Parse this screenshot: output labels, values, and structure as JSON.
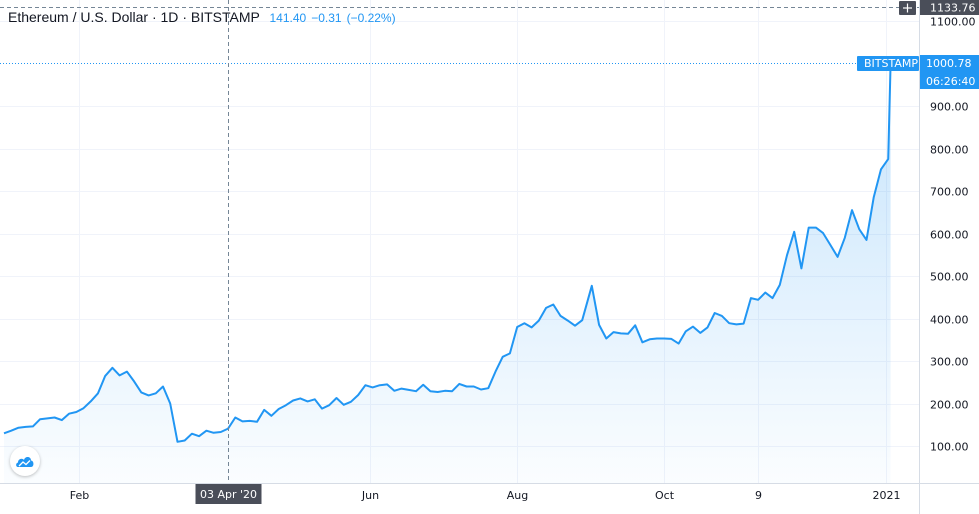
{
  "header": {
    "symbol": "Ethereum / U.S. Dollar",
    "interval": "1D",
    "exchange": "BITSTAMP",
    "last": "141.40",
    "change": "−0.31",
    "change_pct": "(−0.22%)"
  },
  "crosshair": {
    "price_label": "1133.76",
    "date_label": "03 Apr '20"
  },
  "last_price": {
    "exchange_label": "BITSTAMP",
    "value_label": "1000.78",
    "countdown_label": "06:26:40",
    "value": 1000.78
  },
  "colors": {
    "line": "#2196f3",
    "tag": "#2196f3",
    "crosshair_label_bg": "#4a4e59"
  },
  "chart_data": {
    "type": "area",
    "y_ticks": [
      "100.00",
      "200.00",
      "300.00",
      "400.00",
      "500.00",
      "600.00",
      "700.00",
      "800.00",
      "900.00",
      "1100.00"
    ],
    "ylim": [
      40,
      1140
    ],
    "x_ticks": [
      {
        "label": "Feb",
        "date": "2020-02-01"
      },
      {
        "label": "Jun",
        "date": "2020-06-01"
      },
      {
        "label": "Aug",
        "date": "2020-08-01"
      },
      {
        "label": "Oct",
        "date": "2020-10-01"
      },
      {
        "label": "9",
        "date": "2020-11-09"
      },
      {
        "label": "2021",
        "date": "2021-01-01"
      }
    ],
    "xlim": [
      "2020-01-01",
      "2021-01-04"
    ],
    "crosshair_date": "2020-04-03",
    "series": [
      {
        "points": [
          [
            "2020-01-01",
            130
          ],
          [
            "2020-01-04",
            136
          ],
          [
            "2020-01-07",
            143
          ],
          [
            "2020-01-10",
            145
          ],
          [
            "2020-01-13",
            146
          ],
          [
            "2020-01-16",
            163
          ],
          [
            "2020-01-19",
            165
          ],
          [
            "2020-01-22",
            167
          ],
          [
            "2020-01-25",
            161
          ],
          [
            "2020-01-28",
            176
          ],
          [
            "2020-01-31",
            180
          ],
          [
            "2020-02-03",
            189
          ],
          [
            "2020-02-06",
            205
          ],
          [
            "2020-02-09",
            224
          ],
          [
            "2020-02-12",
            265
          ],
          [
            "2020-02-15",
            284
          ],
          [
            "2020-02-18",
            266
          ],
          [
            "2020-02-21",
            275
          ],
          [
            "2020-02-24",
            252
          ],
          [
            "2020-02-27",
            226
          ],
          [
            "2020-03-01",
            219
          ],
          [
            "2020-03-04",
            224
          ],
          [
            "2020-03-07",
            240
          ],
          [
            "2020-03-10",
            200
          ],
          [
            "2020-03-13",
            110
          ],
          [
            "2020-03-16",
            113
          ],
          [
            "2020-03-19",
            129
          ],
          [
            "2020-03-22",
            123
          ],
          [
            "2020-03-25",
            136
          ],
          [
            "2020-03-28",
            131
          ],
          [
            "2020-03-31",
            133
          ],
          [
            "2020-04-03",
            141
          ],
          [
            "2020-04-06",
            167
          ],
          [
            "2020-04-09",
            158
          ],
          [
            "2020-04-12",
            159
          ],
          [
            "2020-04-15",
            157
          ],
          [
            "2020-04-18",
            185
          ],
          [
            "2020-04-21",
            171
          ],
          [
            "2020-04-24",
            187
          ],
          [
            "2020-04-27",
            196
          ],
          [
            "2020-04-30",
            207
          ],
          [
            "2020-05-03",
            212
          ],
          [
            "2020-05-06",
            205
          ],
          [
            "2020-05-09",
            210
          ],
          [
            "2020-05-12",
            188
          ],
          [
            "2020-05-15",
            196
          ],
          [
            "2020-05-18",
            213
          ],
          [
            "2020-05-21",
            197
          ],
          [
            "2020-05-24",
            204
          ],
          [
            "2020-05-27",
            220
          ],
          [
            "2020-05-30",
            243
          ],
          [
            "2020-06-02",
            238
          ],
          [
            "2020-06-05",
            243
          ],
          [
            "2020-06-08",
            245
          ],
          [
            "2020-06-11",
            230
          ],
          [
            "2020-06-14",
            235
          ],
          [
            "2020-06-17",
            232
          ],
          [
            "2020-06-20",
            229
          ],
          [
            "2020-06-23",
            244
          ],
          [
            "2020-06-26",
            229
          ],
          [
            "2020-06-29",
            227
          ],
          [
            "2020-07-02",
            230
          ],
          [
            "2020-07-05",
            229
          ],
          [
            "2020-07-08",
            246
          ],
          [
            "2020-07-11",
            240
          ],
          [
            "2020-07-14",
            240
          ],
          [
            "2020-07-17",
            233
          ],
          [
            "2020-07-20",
            236
          ],
          [
            "2020-07-23",
            275
          ],
          [
            "2020-07-26",
            310
          ],
          [
            "2020-07-29",
            318
          ],
          [
            "2020-08-01",
            380
          ],
          [
            "2020-08-04",
            389
          ],
          [
            "2020-08-07",
            379
          ],
          [
            "2020-08-10",
            395
          ],
          [
            "2020-08-13",
            425
          ],
          [
            "2020-08-16",
            433
          ],
          [
            "2020-08-19",
            406
          ],
          [
            "2020-08-22",
            395
          ],
          [
            "2020-08-25",
            383
          ],
          [
            "2020-08-28",
            396
          ],
          [
            "2020-09-01",
            477
          ],
          [
            "2020-09-04",
            385
          ],
          [
            "2020-09-07",
            353
          ],
          [
            "2020-09-10",
            368
          ],
          [
            "2020-09-13",
            365
          ],
          [
            "2020-09-16",
            364
          ],
          [
            "2020-09-19",
            384
          ],
          [
            "2020-09-22",
            344
          ],
          [
            "2020-09-25",
            351
          ],
          [
            "2020-09-28",
            353
          ],
          [
            "2020-10-01",
            353
          ],
          [
            "2020-10-04",
            352
          ],
          [
            "2020-10-07",
            341
          ],
          [
            "2020-10-10",
            370
          ],
          [
            "2020-10-13",
            381
          ],
          [
            "2020-10-16",
            366
          ],
          [
            "2020-10-19",
            379
          ],
          [
            "2020-10-22",
            413
          ],
          [
            "2020-10-25",
            406
          ],
          [
            "2020-10-28",
            389
          ],
          [
            "2020-10-31",
            386
          ],
          [
            "2020-11-03",
            388
          ],
          [
            "2020-11-06",
            448
          ],
          [
            "2020-11-09",
            444
          ],
          [
            "2020-11-12",
            461
          ],
          [
            "2020-11-15",
            448
          ],
          [
            "2020-11-18",
            479
          ],
          [
            "2020-11-21",
            549
          ],
          [
            "2020-11-24",
            604
          ],
          [
            "2020-11-27",
            518
          ],
          [
            "2020-11-30",
            614
          ],
          [
            "2020-12-03",
            614
          ],
          [
            "2020-12-06",
            601
          ],
          [
            "2020-12-09",
            573
          ],
          [
            "2020-12-12",
            545
          ],
          [
            "2020-12-15",
            590
          ],
          [
            "2020-12-18",
            655
          ],
          [
            "2020-12-21",
            610
          ],
          [
            "2020-12-24",
            585
          ],
          [
            "2020-12-27",
            685
          ],
          [
            "2020-12-30",
            751
          ],
          [
            "2021-01-02",
            775
          ],
          [
            "2021-01-03",
            1000.78
          ]
        ]
      }
    ]
  }
}
